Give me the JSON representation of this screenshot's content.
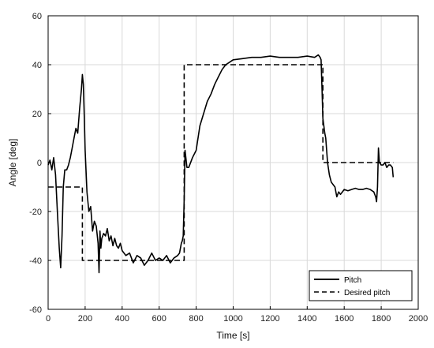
{
  "chart_data": {
    "type": "line",
    "xlabel": "Time [s]",
    "ylabel": "Angle [deg]",
    "xlim": [
      0,
      2000
    ],
    "ylim": [
      -60,
      60
    ],
    "x_ticks": [
      0,
      200,
      400,
      600,
      800,
      1000,
      1200,
      1400,
      1600,
      1800,
      2000
    ],
    "y_ticks": [
      -60,
      -40,
      -20,
      0,
      20,
      40,
      60
    ],
    "x_tick_labels": [
      "0",
      "200",
      "400",
      "600",
      "800",
      "1000",
      "1200",
      "1400",
      "1600",
      "1800",
      "2000"
    ],
    "y_tick_labels": [
      "-60",
      "-40",
      "-20",
      "0",
      "20",
      "40",
      "60"
    ],
    "grid": true,
    "legend_position": "bottom-right",
    "colors": {
      "line": "#000000",
      "grid": "#d9d9d9",
      "frame": "#000000"
    },
    "series": [
      {
        "name": "Pitch",
        "style": "solid",
        "x": [
          0,
          10,
          20,
          30,
          40,
          50,
          60,
          68,
          75,
          82,
          90,
          100,
          110,
          120,
          130,
          140,
          150,
          160,
          170,
          180,
          185,
          190,
          195,
          200,
          210,
          220,
          230,
          240,
          250,
          260,
          270,
          275,
          280,
          285,
          290,
          300,
          310,
          320,
          330,
          340,
          350,
          360,
          370,
          380,
          390,
          400,
          420,
          440,
          460,
          480,
          500,
          520,
          540,
          560,
          580,
          600,
          620,
          640,
          660,
          680,
          700,
          710,
          720,
          725,
          730,
          735,
          740,
          750,
          760,
          780,
          800,
          820,
          840,
          860,
          880,
          900,
          920,
          940,
          960,
          980,
          1000,
          1050,
          1100,
          1150,
          1200,
          1250,
          1300,
          1350,
          1400,
          1440,
          1460,
          1470,
          1475,
          1480,
          1485,
          1490,
          1495,
          1500,
          1510,
          1520,
          1530,
          1540,
          1550,
          1560,
          1570,
          1580,
          1590,
          1600,
          1620,
          1640,
          1660,
          1680,
          1700,
          1720,
          1740,
          1760,
          1770,
          1775,
          1780,
          1785,
          1790,
          1800,
          1810,
          1820,
          1830,
          1840,
          1850,
          1860,
          1865
        ],
        "y": [
          -1,
          1,
          -3,
          2,
          -5,
          -20,
          -35,
          -43,
          -30,
          -10,
          -3,
          -3,
          -1,
          2,
          6,
          10,
          14,
          12,
          22,
          30,
          36,
          32,
          20,
          5,
          -12,
          -20,
          -18,
          -28,
          -24,
          -26,
          -33,
          -45,
          -28,
          -35,
          -31,
          -29,
          -30,
          -27,
          -32,
          -30,
          -34,
          -31,
          -34,
          -35,
          -33,
          -36,
          -38,
          -37,
          -41,
          -38,
          -39,
          -42,
          -40,
          -37,
          -40,
          -39,
          -40,
          -38,
          -41,
          -39,
          -38,
          -37,
          -33,
          -32,
          -30,
          -15,
          5,
          -2,
          -2,
          2,
          5,
          15,
          20,
          25,
          28,
          32,
          35,
          38,
          40,
          41,
          42,
          42.5,
          43,
          43,
          43.5,
          43,
          43,
          43,
          43.5,
          43,
          44,
          43,
          42,
          30,
          18,
          15,
          12,
          10,
          0,
          -5,
          -8,
          -9,
          -10,
          -14,
          -12,
          -13,
          -12,
          -11,
          -11.5,
          -11,
          -10.5,
          -11,
          -11,
          -10.5,
          -11,
          -12,
          -14,
          -16,
          -10,
          6,
          0,
          -1,
          -1,
          0,
          -2,
          -1,
          -1,
          -2,
          -6
        ]
      },
      {
        "name": "Desired pitch",
        "style": "dashed",
        "x": [
          0,
          185,
          185,
          735,
          735,
          1485,
          1485,
          1865
        ],
        "y": [
          -10,
          -10,
          -40,
          -40,
          40,
          40,
          0,
          0
        ]
      }
    ]
  }
}
